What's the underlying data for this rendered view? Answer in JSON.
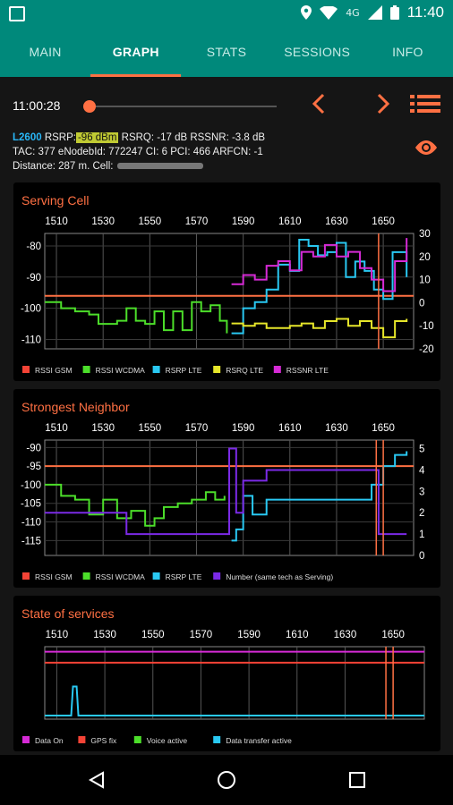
{
  "status_bar": {
    "time": "11:40",
    "network": "4G"
  },
  "tabs": [
    {
      "label": "MAIN"
    },
    {
      "label": "GRAPH",
      "active": true
    },
    {
      "label": "STATS"
    },
    {
      "label": "SESSIONS"
    },
    {
      "label": "INFO"
    }
  ],
  "controls": {
    "time": "11:00:28",
    "slider_position": 0.0
  },
  "info": {
    "tech": "L2600",
    "rsrp_label": "RSRP:",
    "rsrp_value": "-96 dBm",
    "rest1": "RSRQ: -17 dB  RSSNR: -3.8 dB",
    "line2": "TAC: 377  eNodebId: 772247  CI: 6  PCI: 466  ARFCN: -1",
    "line3": "Distance: 287 m.   Cell:"
  },
  "colors": {
    "accent": "#ff7043",
    "teal": "#00897b",
    "gsm": "#f44336",
    "wcdma": "#4cde2a",
    "lte": "#29c8f2",
    "rsrq": "#e6e62a",
    "rssnr": "#d62ad6",
    "number": "#7b2ae6"
  },
  "chart_data": [
    {
      "type": "line",
      "title": "Serving Cell",
      "x_ticks": [
        "1510",
        "1530",
        "1550",
        "1570",
        "1590",
        "1610",
        "1630",
        "1650"
      ],
      "y_left_ticks": [
        "-80",
        "-90",
        "-100",
        "-110"
      ],
      "y_right_ticks": [
        "30",
        "20",
        "10",
        "0",
        "-10",
        "-20"
      ],
      "ylim_left": [
        -113,
        -76
      ],
      "ylim_right": [
        -20,
        30
      ],
      "xlim": [
        1505,
        1663
      ],
      "legend": [
        "RSSI GSM",
        "RSSI WCDMA",
        "RSRP LTE",
        "RSRQ LTE",
        "RSSNR LTE"
      ],
      "threshold": -96,
      "cursor_x": [
        1648
      ],
      "series": [
        {
          "name": "RSSI WCDMA",
          "axis": "left",
          "x": [
            1505,
            1512,
            1518,
            1524,
            1528,
            1532,
            1536,
            1540,
            1544,
            1548,
            1552,
            1556,
            1560,
            1564,
            1568,
            1572,
            1576,
            1580,
            1583
          ],
          "y": [
            -98,
            -100,
            -101,
            -102,
            -105,
            -105,
            -104,
            -100,
            -104,
            -105,
            -101,
            -107,
            -101,
            -107,
            -98,
            -101,
            -99,
            -104,
            -108
          ]
        },
        {
          "name": "RSRP LTE",
          "axis": "left",
          "x": [
            1585,
            1590,
            1595,
            1600,
            1605,
            1610,
            1614,
            1618,
            1622,
            1626,
            1630,
            1634,
            1638,
            1642,
            1646,
            1650,
            1654,
            1660
          ],
          "y": [
            -108,
            -100,
            -98,
            -94,
            -86,
            -88,
            -78,
            -80,
            -83,
            -82,
            -79,
            -90,
            -85,
            -88,
            -94,
            -97,
            -82,
            -90
          ]
        },
        {
          "name": "RSRQ LTE",
          "axis": "right",
          "x": [
            1585,
            1590,
            1595,
            1600,
            1605,
            1610,
            1615,
            1620,
            1625,
            1630,
            1635,
            1640,
            1645,
            1650,
            1655,
            1660
          ],
          "y": [
            -9,
            -10,
            -9,
            -11,
            -11,
            -10,
            -9,
            -11,
            -8,
            -7,
            -10,
            -8,
            -11,
            -15,
            -8,
            -7
          ]
        },
        {
          "name": "RSSNR LTE",
          "axis": "right",
          "x": [
            1585,
            1590,
            1595,
            1600,
            1605,
            1610,
            1615,
            1620,
            1625,
            1630,
            1635,
            1640,
            1645,
            1650,
            1655,
            1660
          ],
          "y": [
            8,
            12,
            10,
            16,
            18,
            14,
            22,
            20,
            25,
            20,
            22,
            15,
            10,
            5,
            18,
            28
          ]
        }
      ]
    },
    {
      "type": "line",
      "title": "Strongest Neighbor",
      "x_ticks": [
        "1510",
        "1530",
        "1550",
        "1570",
        "1590",
        "1610",
        "1630",
        "1650"
      ],
      "y_left_ticks": [
        "-90",
        "-95",
        "-100",
        "-105",
        "-110",
        "-115"
      ],
      "y_right_ticks": [
        "5",
        "4",
        "3",
        "2",
        "1",
        "0"
      ],
      "ylim_left": [
        -119,
        -88
      ],
      "ylim_right": [
        0,
        5.4
      ],
      "xlim": [
        1505,
        1663
      ],
      "legend": [
        "RSSI GSM",
        "RSSI WCDMA",
        "RSRP LTE",
        "Number (same tech as Serving)"
      ],
      "threshold": -95,
      "cursor_x": [
        1647,
        1650
      ],
      "series": [
        {
          "name": "RSSI WCDMA",
          "axis": "left",
          "x": [
            1505,
            1512,
            1518,
            1524,
            1530,
            1536,
            1542,
            1548,
            1552,
            1556,
            1562,
            1568,
            1574,
            1578,
            1582
          ],
          "y": [
            -100,
            -103,
            -104,
            -108,
            -104,
            -109,
            -107,
            -111,
            -109,
            -106,
            -105,
            -104,
            -102,
            -104,
            -103
          ]
        },
        {
          "name": "RSRP LTE",
          "axis": "left",
          "x": [
            1585,
            1587,
            1590,
            1594,
            1600,
            1610,
            1620,
            1630,
            1640,
            1645,
            1650,
            1655,
            1660
          ],
          "y": [
            -115,
            -112,
            -103,
            -108,
            -104,
            -104,
            -104,
            -104,
            -104,
            -100,
            -95,
            -92,
            -91
          ]
        },
        {
          "name": "Number (same tech as Serving)",
          "axis": "right",
          "x": [
            1505,
            1520,
            1540,
            1560,
            1582,
            1584,
            1587,
            1590,
            1600,
            1620,
            1640,
            1648,
            1652,
            1656,
            1660
          ],
          "y": [
            2,
            2,
            1,
            1,
            1,
            5,
            2,
            3.5,
            4,
            4,
            4,
            1,
            1,
            1,
            1
          ]
        }
      ]
    },
    {
      "type": "line",
      "title": "State of services",
      "x_ticks": [
        "1510",
        "1530",
        "1550",
        "1570",
        "1590",
        "1610",
        "1630",
        "1650"
      ],
      "xlim": [
        1505,
        1663
      ],
      "legend": [
        "Data On",
        "GPS fix",
        "Voice active",
        "Data transfer active"
      ],
      "cursor_x": [
        1647,
        1650
      ],
      "series": [
        {
          "name": "Data On",
          "level": 0.93
        },
        {
          "name": "GPS fix",
          "level": 0.78
        },
        {
          "name": "Data transfer active",
          "level": 0.05,
          "bump_x": [
            1516,
            1519
          ]
        }
      ]
    }
  ]
}
